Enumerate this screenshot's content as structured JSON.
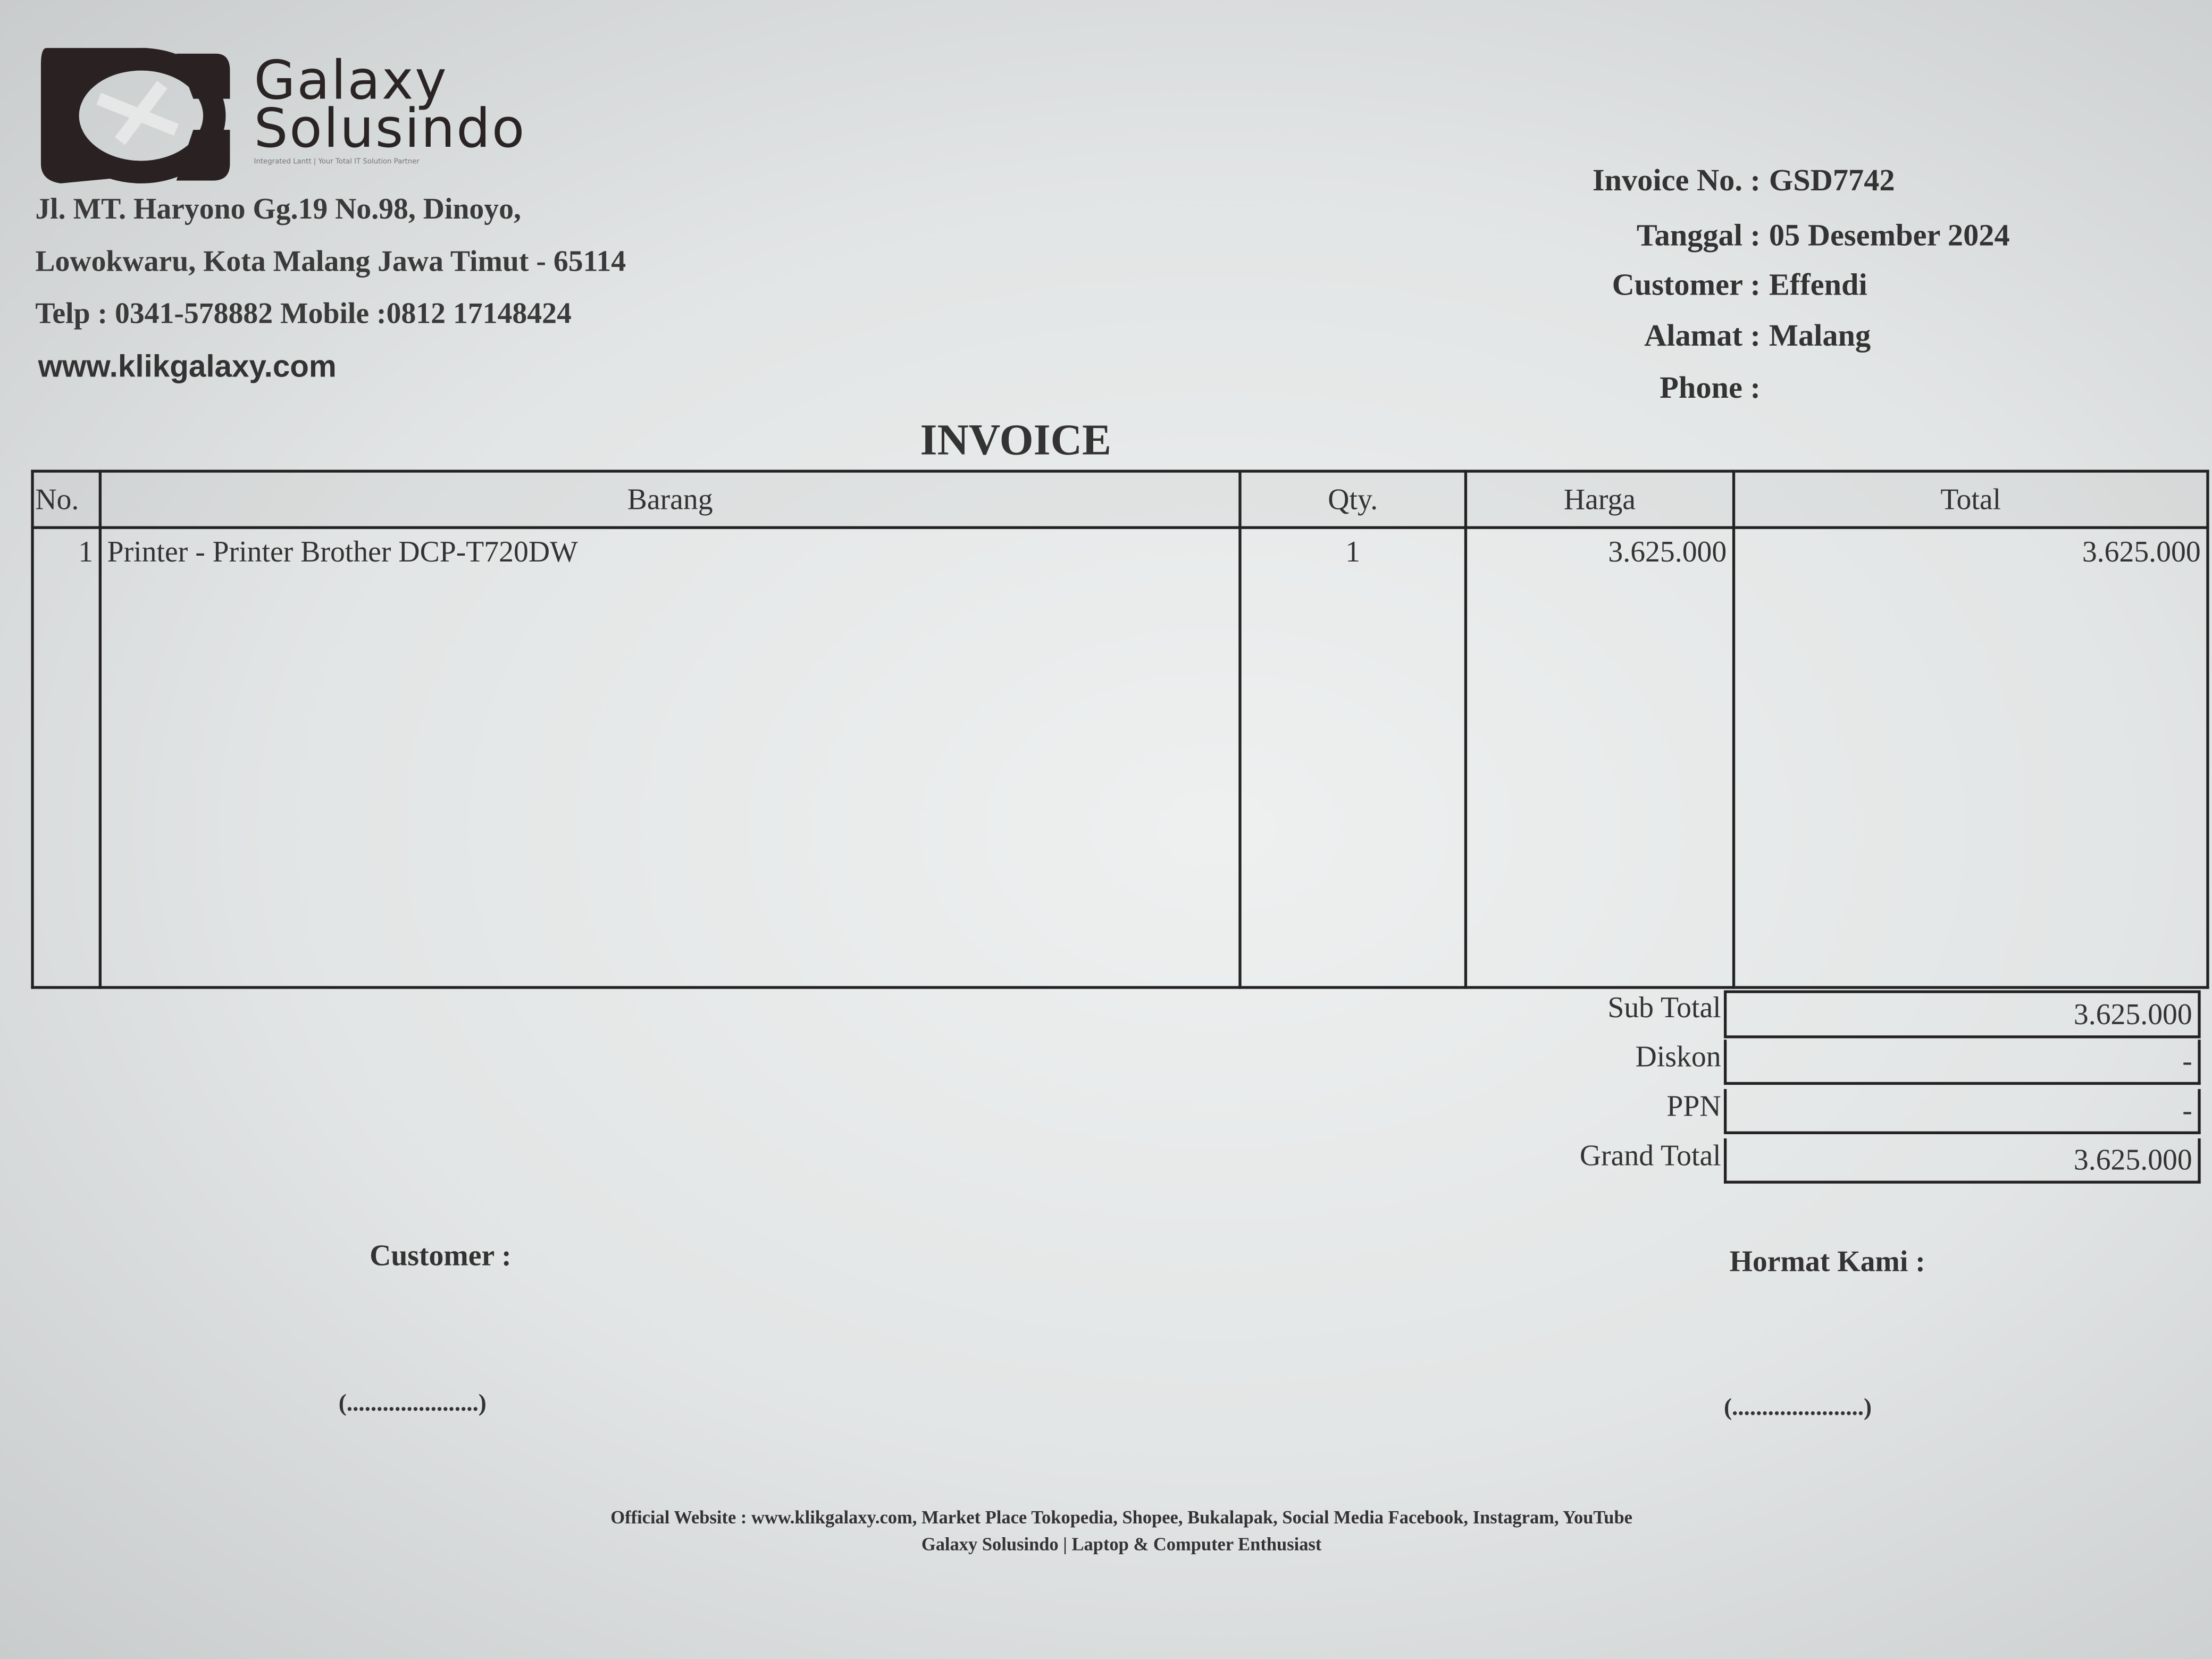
{
  "company": {
    "name_line1": "Galaxy",
    "name_line2": "Solusindo",
    "tagline": "Integrated Lantt | Your Total IT Solution Partner",
    "address_line1": "Jl. MT. Haryono Gg.19 No.98, Dinoyo,",
    "address_line2": "Lowokwaru, Kota Malang Jawa Timut - 65114",
    "phone_line": "Telp : 0341-578882 Mobile :0812 17148424",
    "website": "www.klikgalaxy.com"
  },
  "invoice_info": [
    {
      "label": "Invoice No. :",
      "value": "GSD7742"
    },
    {
      "label": "Tanggal :",
      "value": "05 Desember 2024"
    },
    {
      "label": "Customer :",
      "value": "Effendi"
    },
    {
      "label": "Alamat :",
      "value": "Malang"
    },
    {
      "label": "Phone :",
      "value": ""
    }
  ],
  "title": "INVOICE",
  "table": {
    "headers": [
      "No.",
      "Barang",
      "Qty.",
      "Harga",
      "Total"
    ],
    "rows": [
      {
        "no": "1",
        "barang": "Printer - Printer Brother DCP-T720DW",
        "qty": "1",
        "harga": "3.625.000",
        "total": "3.625.000"
      }
    ]
  },
  "totals": [
    {
      "label": "Sub Total",
      "value": "3.625.000"
    },
    {
      "label": "Diskon",
      "value": "-"
    },
    {
      "label": "PPN",
      "value": "-"
    },
    {
      "label": "Grand Total",
      "value": "3.625.000"
    }
  ],
  "signatures": {
    "customer_label": "Customer :",
    "company_label": "Hormat Kami :",
    "customer_line": "(......................)",
    "company_line": "(......................)"
  },
  "footer": {
    "line1": "Official Website : www.klikgalaxy.com, Market Place Tokopedia, Shopee, Bukalapak, Social Media Facebook, Instagram, YouTube",
    "line2": "Galaxy Solusindo | Laptop & Computer Enthusiast"
  }
}
